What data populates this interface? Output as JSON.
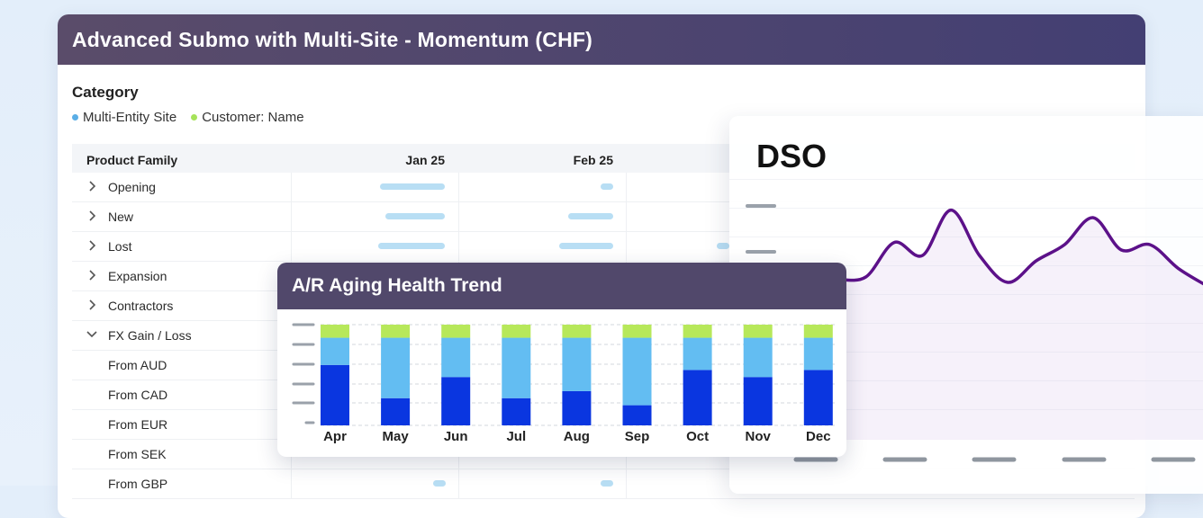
{
  "main": {
    "title": "Advanced Submo with Multi-Site - Momentum (CHF)",
    "category_label": "Category",
    "legend": [
      {
        "label": "Multi-Entity Site",
        "color": "#5aaee6"
      },
      {
        "label": "Customer: Name",
        "color": "#a6e35a"
      }
    ],
    "table": {
      "headers": [
        "Product Family",
        "Jan 25",
        "Feb 25"
      ],
      "rows": [
        {
          "label": "Opening",
          "expander": "chevron-right"
        },
        {
          "label": "New",
          "expander": "chevron-right"
        },
        {
          "label": "Lost",
          "expander": "chevron-right"
        },
        {
          "label": "Expansion",
          "expander": "chevron-right"
        },
        {
          "label": "Contractors",
          "expander": "chevron-right"
        },
        {
          "label": "FX Gain / Loss",
          "expander": "chevron-down"
        },
        {
          "label": "From AUD",
          "expander": ""
        },
        {
          "label": "From CAD",
          "expander": ""
        },
        {
          "label": "From EUR",
          "expander": ""
        },
        {
          "label": "From SEK",
          "expander": ""
        },
        {
          "label": "From GBP",
          "expander": ""
        }
      ]
    }
  },
  "ar_chart": {
    "title": "A/R Aging Health Trend",
    "chart_data": {
      "type": "bar",
      "stacked": true,
      "categories": [
        "Apr",
        "May",
        "Jun",
        "Jul",
        "Aug",
        "Sep",
        "Oct",
        "Nov",
        "Dec"
      ],
      "series": [
        {
          "color": "#0a36e0",
          "values": [
            0.6,
            0.27,
            0.48,
            0.27,
            0.34,
            0.2,
            0.55,
            0.48,
            0.55
          ]
        },
        {
          "color": "#63bdf2",
          "values": [
            0.27,
            0.6,
            0.39,
            0.6,
            0.53,
            0.67,
            0.32,
            0.39,
            0.32
          ]
        },
        {
          "color": "#b7e85a",
          "values": [
            0.13,
            0.13,
            0.13,
            0.13,
            0.13,
            0.13,
            0.13,
            0.13,
            0.13
          ]
        }
      ],
      "ylim": [
        0,
        1
      ],
      "grid": true
    }
  },
  "dso": {
    "title": "DSO",
    "chart_data": {
      "type": "line",
      "color": "#5c1189",
      "values": [
        0.28,
        0.3,
        0.62,
        0.5,
        0.92,
        0.5,
        0.25,
        0.45,
        0.6,
        0.85,
        0.55,
        0.6,
        0.38,
        0.22
      ]
    }
  }
}
